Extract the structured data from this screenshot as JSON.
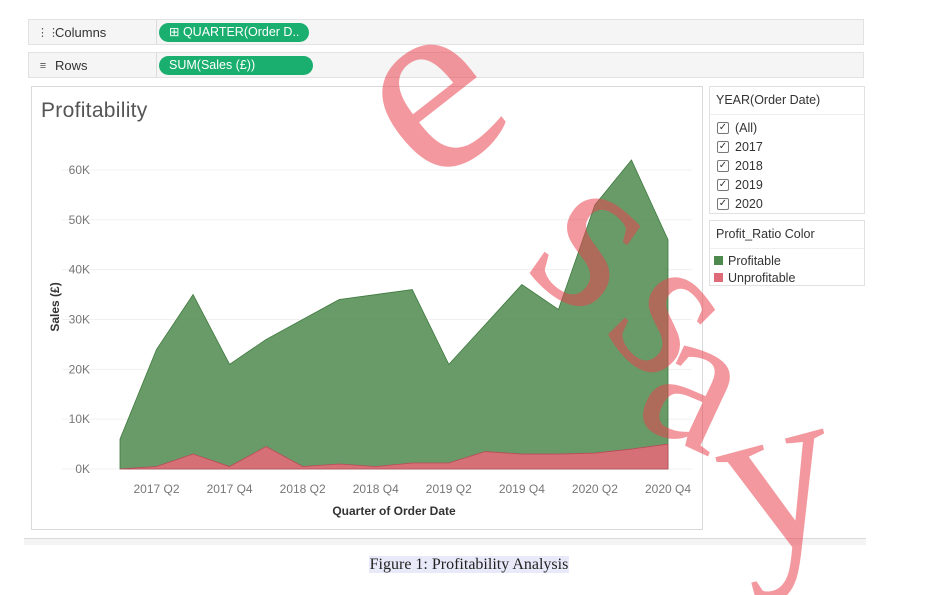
{
  "shelves": {
    "columns": {
      "label": "Columns",
      "icon": "columns-icon",
      "pill": "⊞ QUARTER(Order D.."
    },
    "rows": {
      "label": "Rows",
      "icon": "rows-icon",
      "pill": "SUM(Sales (£))"
    }
  },
  "view": {
    "title": "Profitability"
  },
  "filter": {
    "title": "YEAR(Order Date)",
    "items": [
      {
        "label": "(All)",
        "checked": true
      },
      {
        "label": "2017",
        "checked": true
      },
      {
        "label": "2018",
        "checked": true
      },
      {
        "label": "2019",
        "checked": true
      },
      {
        "label": "2020",
        "checked": true
      }
    ]
  },
  "legend": {
    "title": "Profit_Ratio Color",
    "items": [
      {
        "label": "Profitable",
        "color": "#4e8a4e"
      },
      {
        "label": "Unprofitable",
        "color": "#e06b78"
      }
    ]
  },
  "caption": "Figure 1: Profitability Analysis",
  "watermark": {
    "text": "essay",
    "color": "#e8434f"
  },
  "chart_data": {
    "type": "area",
    "title": "Profitability",
    "xlabel": "Quarter of Order Date",
    "ylabel": "Sales (£)",
    "ylim": [
      0,
      63000
    ],
    "yticks": [
      0,
      10000,
      20000,
      30000,
      40000,
      50000,
      60000
    ],
    "ytick_labels": [
      "0K",
      "10K",
      "20K",
      "30K",
      "40K",
      "50K",
      "60K"
    ],
    "x": [
      "2017 Q1",
      "2017 Q2",
      "2017 Q3",
      "2017 Q4",
      "2018 Q1",
      "2018 Q2",
      "2018 Q3",
      "2018 Q4",
      "2019 Q1",
      "2019 Q2",
      "2019 Q3",
      "2019 Q4",
      "2020 Q1",
      "2020 Q2",
      "2020 Q3",
      "2020 Q4"
    ],
    "xtick_labels": [
      "2017 Q2",
      "2017 Q4",
      "2018 Q2",
      "2018 Q4",
      "2019 Q2",
      "2019 Q4",
      "2020 Q2",
      "2020 Q4"
    ],
    "grid": "horizontal",
    "series": [
      {
        "name": "Profitable",
        "color": "#4e8a4e",
        "values": [
          6000,
          24000,
          35000,
          21000,
          26000,
          30000,
          34000,
          35000,
          36000,
          21000,
          29000,
          37000,
          32000,
          53000,
          62000,
          46000
        ]
      },
      {
        "name": "Unprofitable",
        "color": "#e06b78",
        "values": [
          0,
          500,
          3000,
          500,
          4500,
          500,
          1000,
          500,
          1200,
          1200,
          3500,
          3000,
          3000,
          3200,
          4000,
          5000
        ]
      }
    ]
  }
}
